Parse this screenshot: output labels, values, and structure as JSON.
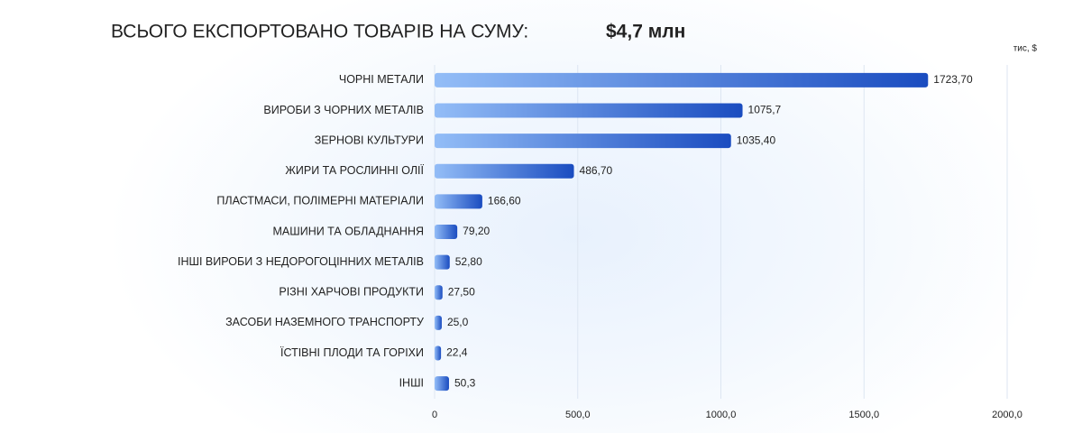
{
  "chart_data": {
    "type": "barh",
    "title": "ВСЬОГО ЕКСПОРТОВАНО ТОВАРІВ НА СУМУ:",
    "total": "$4,7 млн",
    "unit": "тис, $",
    "categories": [
      "ЧОРНІ МЕТАЛИ",
      "ВИРОБИ З ЧОРНИХ МЕТАЛІВ",
      "ЗЕРНОВІ КУЛЬТУРИ",
      "ЖИРИ ТА РОСЛИННІ ОЛІЇ",
      "ПЛАСТМАСИ, ПОЛІМЕРНІ МАТЕРІАЛИ",
      "МАШИНИ ТА ОБЛАДНАННЯ",
      "ІНШІ ВИРОБИ З НЕДОРОГОЦІННИХ МЕТАЛІВ",
      "РІЗНІ ХАРЧОВІ ПРОДУКТИ",
      "ЗАСОБИ НАЗЕМНОГО ТРАНСПОРТУ",
      "ЇСТІВНІ ПЛОДИ ТА ГОРІХИ",
      "ІНШІ"
    ],
    "values": [
      1723.7,
      1075.7,
      1035.4,
      486.7,
      166.6,
      79.2,
      52.8,
      27.5,
      25.0,
      22.4,
      50.3
    ],
    "value_labels": [
      "1723,70",
      "1075,7",
      "1035,40",
      "486,70",
      "166,60",
      "79,20",
      "52,80",
      "27,50",
      "25,0",
      "22,4",
      "50,3"
    ],
    "colors": [
      "#93bdf7",
      "#1a4cc0"
    ],
    "xlim": [
      0,
      2000
    ],
    "xticks": [
      0,
      {
        "value": 500,
        "label": "500,0"
      },
      {
        "value": 1000,
        "label": "1000,0"
      },
      {
        "value": 1500,
        "label": "1500,0"
      },
      {
        "value": 2000,
        "label": "2000,0"
      }
    ],
    "grid": true
  }
}
